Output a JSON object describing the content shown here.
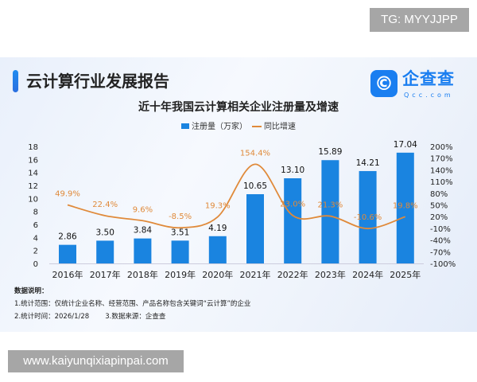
{
  "badge": "TG: MYYJJPP",
  "watermark": "www.kaiyunqixiapinpai.com",
  "header": {
    "title": "云计算行业发展报告",
    "logo_text": "企查查",
    "logo_domain": "Qcc.com"
  },
  "chart_data": {
    "type": "bar+line",
    "title": "近十年我国云计算相关企业注册量及增速",
    "categories": [
      "2016年",
      "2017年",
      "2018年",
      "2019年",
      "2020年",
      "2021年",
      "2022年",
      "2023年",
      "2024年",
      "2025年"
    ],
    "series": [
      {
        "name": "注册量（万家）",
        "type": "bar",
        "axis": "left",
        "color": "#1a84e0",
        "values": [
          2.86,
          3.5,
          3.84,
          3.51,
          4.19,
          10.65,
          13.1,
          15.89,
          14.21,
          17.04
        ],
        "labels": [
          "2.86",
          "3.50",
          "3.84",
          "3.51",
          "4.19",
          "10.65",
          "13.10",
          "15.89",
          "14.21",
          "17.04"
        ]
      },
      {
        "name": "同比增速",
        "type": "line",
        "axis": "right",
        "color": "#e08a3a",
        "values": [
          49.9,
          22.4,
          9.6,
          -8.5,
          19.3,
          154.4,
          23.0,
          21.3,
          -10.6,
          19.8
        ],
        "labels": [
          "49.9%",
          "22.4%",
          "9.6%",
          "-8.5%",
          "19.3%",
          "154.4%",
          "23.0%",
          "21.3%",
          "-10.6%",
          "19.8%"
        ]
      }
    ],
    "left_axis": {
      "range": [
        0,
        18
      ],
      "ticks": [
        "0",
        "2",
        "4",
        "6",
        "8",
        "10",
        "12",
        "14",
        "16",
        "18"
      ]
    },
    "right_axis": {
      "range": [
        -100,
        200
      ],
      "ticks": [
        "-100%",
        "-70%",
        "-40%",
        "-10%",
        "20%",
        "50%",
        "80%",
        "110%",
        "140%",
        "170%",
        "200%"
      ]
    },
    "legend": "top-center",
    "grid": false
  },
  "notes": {
    "heading": "数据说明：",
    "line1": "1.统计范围：仅统计企业名称、经营范围、产品名称包含关键词“云计算”的企业",
    "line2a": "2.统计时间：2026/1/28",
    "line2b": "3.数据来源：企查查"
  }
}
